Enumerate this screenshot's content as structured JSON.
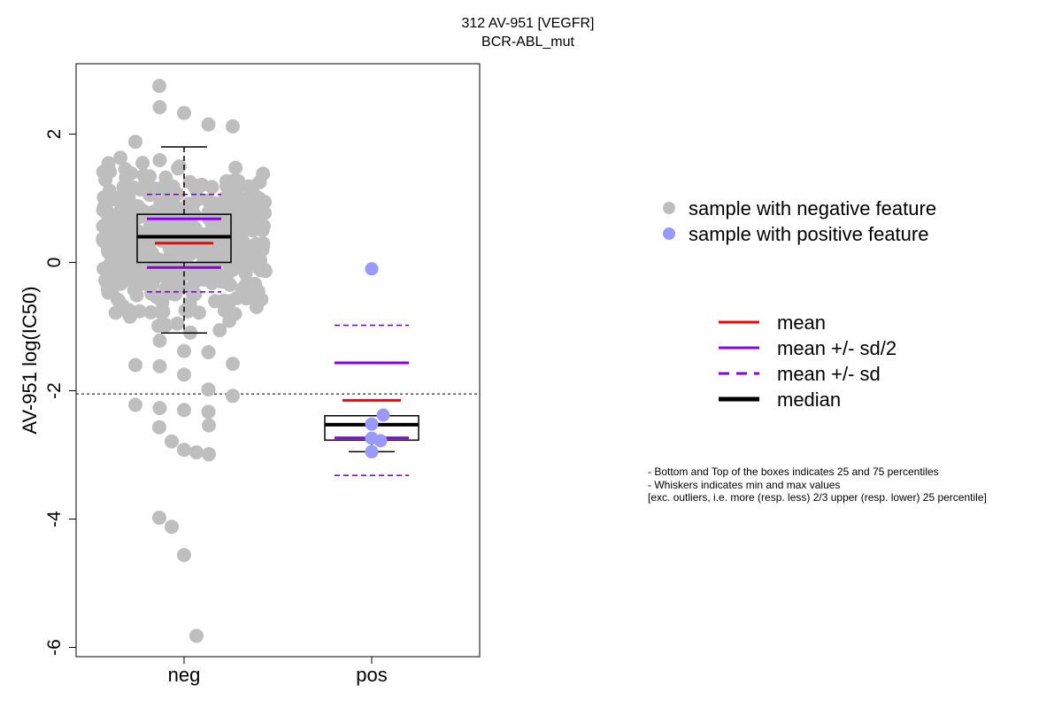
{
  "title": {
    "line1": "312 AV-951 [VEGFR]",
    "line2": "BCR-ABL_mut"
  },
  "legend_points": [
    {
      "label": "sample with negative feature",
      "color": "#bebebe"
    },
    {
      "label": "sample with positive feature",
      "color": "#9999ff"
    }
  ],
  "legend_lines": [
    {
      "label": "mean",
      "color": "#ff0000",
      "style": "solid"
    },
    {
      "label": "mean +/- sd/2",
      "color": "#8a00e6",
      "style": "solid"
    },
    {
      "label": "mean +/- sd",
      "color": "#8a00e6",
      "style": "dashed"
    },
    {
      "label": "median",
      "color": "#000000",
      "style": "solid-thick"
    }
  ],
  "notes": [
    "- Bottom and Top of the boxes indicates 25 and 75 percentiles",
    "- Whiskers indicates min and max values",
    "[exc. outliers, i.e. more (resp. less) 2/3 upper (resp. lower) 25 percentile]"
  ],
  "chart_data": {
    "type": "box",
    "title": "312 AV-951 [VEGFR]\nBCR-ABL_mut",
    "xlabel": "",
    "ylabel": "AV-951 log(IC50)",
    "categories": [
      "neg",
      "pos"
    ],
    "ylim": [
      -6.15,
      3.1
    ],
    "yticks": [
      -6,
      -4,
      -2,
      0,
      2
    ],
    "threshold": -2.05,
    "groups": [
      {
        "name": "neg",
        "color": "#bebebe",
        "stats": {
          "q1": 0.0,
          "median": 0.4,
          "q3": 0.75,
          "whisker_low": -1.1,
          "whisker_high": 1.8
        },
        "mean": 0.3,
        "sd": 0.76,
        "outliers": [
          2.75,
          2.42,
          2.33,
          2.15,
          2.12,
          1.88,
          -1.22,
          -1.38,
          -1.4,
          -1.58,
          -1.6,
          -1.62,
          -1.75,
          -1.98,
          -2.08,
          -2.22,
          -2.27,
          -2.3,
          -2.33,
          -2.54,
          -2.57,
          -2.79,
          -2.92,
          -2.96,
          -2.99,
          -3.98,
          -4.12,
          -4.56,
          -5.82
        ]
      },
      {
        "name": "pos",
        "color": "#9999ff",
        "stats": {
          "q1": -2.77,
          "median": -2.53,
          "q3": -2.39,
          "whisker_low": -2.95,
          "whisker_high": -2.39
        },
        "mean": -2.15,
        "sd": 1.17,
        "points": [
          -0.1,
          -2.38,
          -2.52,
          -2.74,
          -2.78,
          -2.95
        ]
      }
    ]
  }
}
